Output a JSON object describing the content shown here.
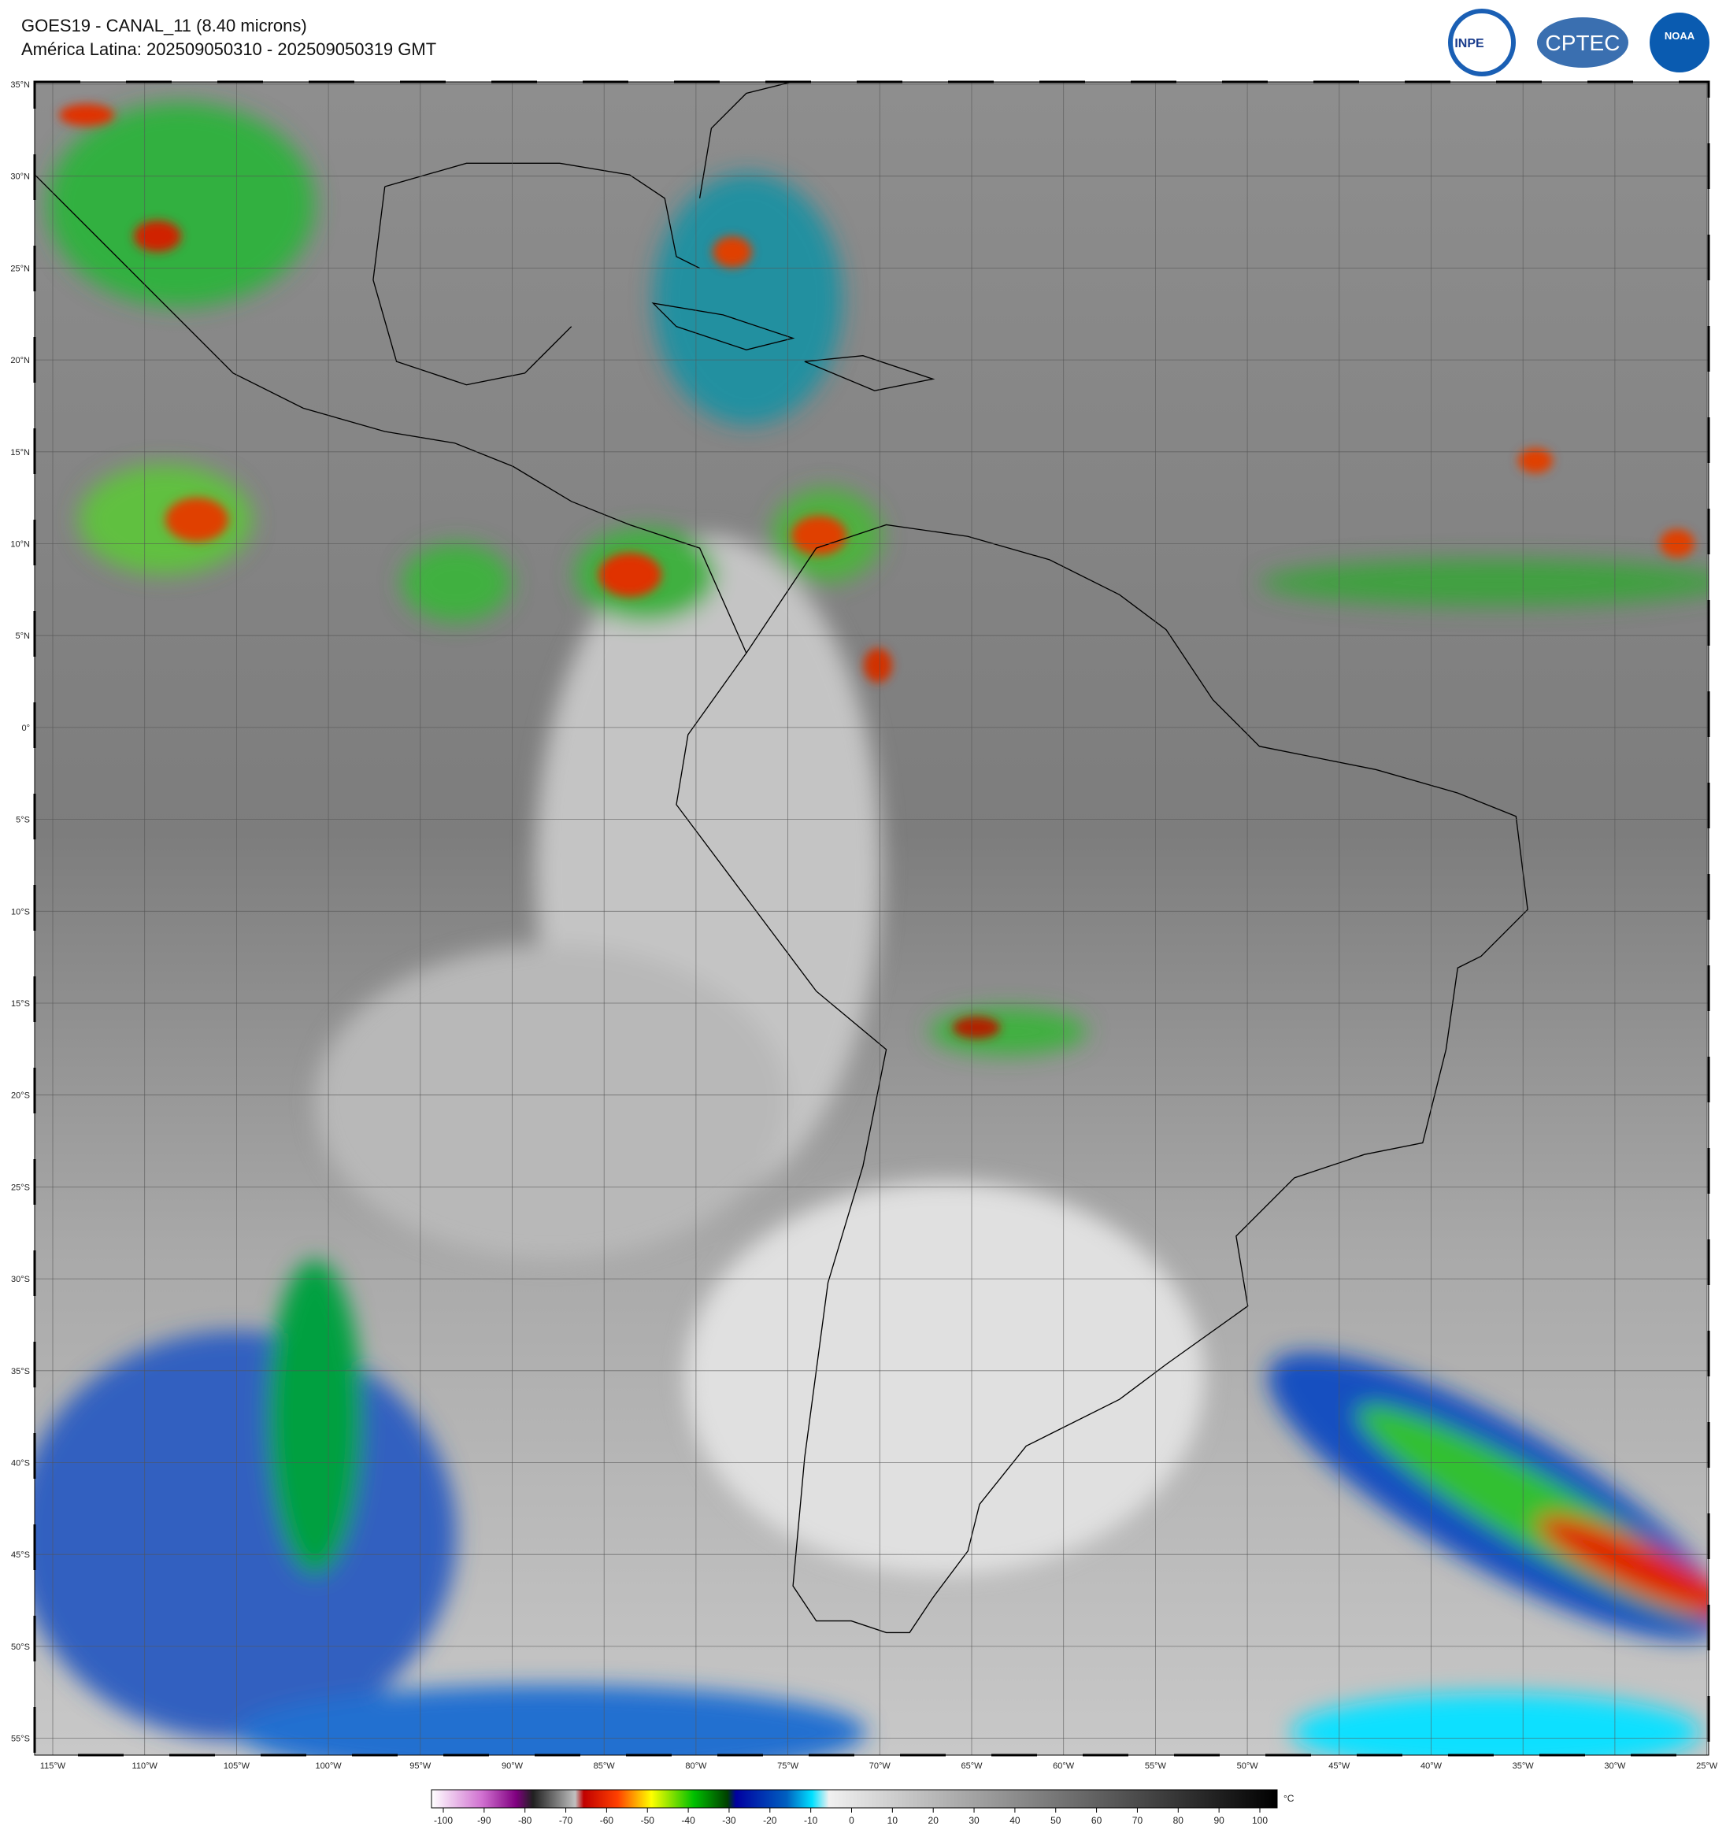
{
  "header": {
    "title": "GOES19 - CANAL_11 (8.40 microns)",
    "subtitle": "América Latina: 202509050310 - 202509050319 GMT"
  },
  "logos": [
    "INPE",
    "CPTEC",
    "NOAA"
  ],
  "map": {
    "lat_labels": [
      "35°N",
      "30°N",
      "25°N",
      "20°N",
      "15°N",
      "10°N",
      "5°N",
      "0°",
      "5°S",
      "10°S",
      "15°S",
      "20°S",
      "25°S",
      "30°S",
      "35°S",
      "40°S",
      "45°S",
      "50°S",
      "55°S"
    ],
    "lon_labels": [
      "115°W",
      "110°W",
      "105°W",
      "100°W",
      "95°W",
      "90°W",
      "85°W",
      "80°W",
      "75°W",
      "70°W",
      "65°W",
      "60°W",
      "55°W",
      "50°W",
      "45°W",
      "40°W",
      "35°W",
      "30°W",
      "25°W"
    ]
  },
  "colorbar": {
    "ticks": [
      -100,
      -90,
      -80,
      -70,
      -60,
      -50,
      -40,
      -30,
      -20,
      -10,
      0,
      10,
      20,
      30,
      40,
      50,
      60,
      70,
      80,
      90,
      100
    ],
    "unit": "°C"
  }
}
